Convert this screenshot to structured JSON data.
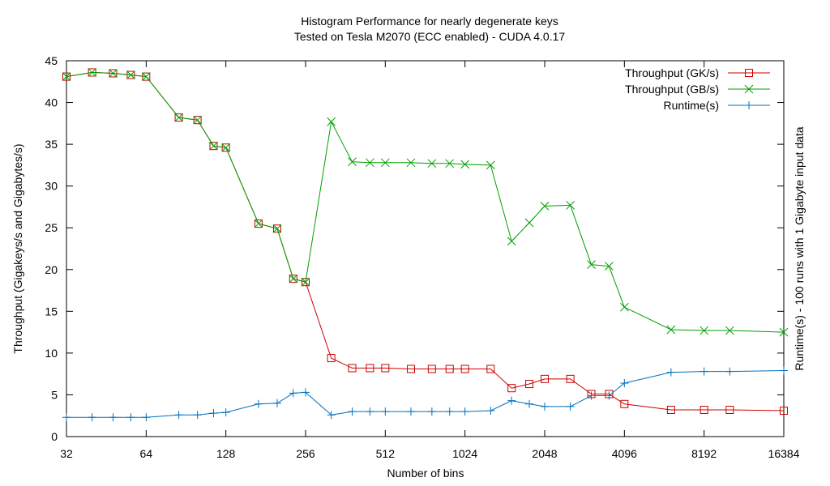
{
  "chart_data": {
    "type": "line",
    "title": "Histogram Performance for nearly degenerate keys",
    "subtitle": "Tested on Tesla M2070 (ECC enabled) - CUDA 4.0.17",
    "xlabel": "Number of bins",
    "ylabel": "Throughput (Gigakeys/s and Gigabytes/s)",
    "y2label": "Runtime(s) - 100 runs with 1 Gigabyte input data",
    "x_scale": "log2",
    "xlim": [
      32,
      16384
    ],
    "ylim": [
      0,
      45
    ],
    "x_ticks": [
      32,
      64,
      128,
      256,
      512,
      1024,
      2048,
      4096,
      8192,
      16384
    ],
    "y_ticks": [
      0,
      5,
      10,
      15,
      20,
      25,
      30,
      35,
      40,
      45
    ],
    "grid": false,
    "legend_position": "top-right",
    "x": [
      32,
      40,
      48,
      56,
      64,
      85,
      100,
      115,
      128,
      170,
      200,
      230,
      256,
      320,
      384,
      448,
      512,
      640,
      768,
      896,
      1024,
      1280,
      1536,
      1792,
      2048,
      2560,
      3072,
      3584,
      4096,
      6144,
      8192,
      10240,
      16384
    ],
    "series": [
      {
        "name": "Throughput (GK/s)",
        "color": "#cc0000",
        "marker": "square",
        "values": [
          43.1,
          43.6,
          43.5,
          43.3,
          43.1,
          38.2,
          37.9,
          34.8,
          34.6,
          25.5,
          24.9,
          18.9,
          18.5,
          9.4,
          8.2,
          8.2,
          8.2,
          8.1,
          8.1,
          8.1,
          8.1,
          8.1,
          5.8,
          6.3,
          6.9,
          6.9,
          5.1,
          5.1,
          3.9,
          3.2,
          3.2,
          3.2,
          3.1
        ]
      },
      {
        "name": "Throughput (GB/s)",
        "color": "#00a000",
        "marker": "x",
        "values": [
          43.1,
          43.6,
          43.5,
          43.3,
          43.1,
          38.2,
          37.9,
          34.8,
          34.6,
          25.5,
          24.9,
          18.9,
          18.5,
          37.7,
          32.9,
          32.8,
          32.8,
          32.8,
          32.7,
          32.7,
          32.6,
          32.5,
          23.4,
          25.6,
          27.6,
          27.7,
          20.6,
          20.4,
          15.5,
          12.8,
          12.7,
          12.7,
          12.5
        ]
      },
      {
        "name": "Runtime(s)",
        "color": "#0070c0",
        "marker": "plus",
        "values": [
          2.3,
          2.3,
          2.3,
          2.3,
          2.3,
          2.6,
          2.6,
          2.8,
          2.9,
          3.9,
          4.0,
          5.2,
          5.3,
          2.6,
          3.0,
          3.0,
          3.0,
          3.0,
          3.0,
          3.0,
          3.0,
          3.1,
          4.3,
          3.9,
          3.6,
          3.6,
          4.9,
          4.9,
          6.4,
          7.7,
          7.8,
          7.8,
          7.9
        ]
      }
    ]
  }
}
